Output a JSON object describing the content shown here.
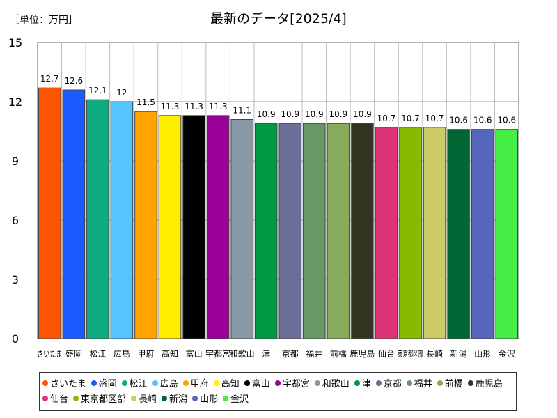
{
  "chart_data": {
    "type": "bar",
    "title": "最新のデータ[2025/4]",
    "unit_label": "［単位：万円］",
    "ylim": [
      0,
      15
    ],
    "yticks": [
      0,
      3,
      6,
      9,
      12,
      15
    ],
    "grid": true,
    "legend_position": "bottom",
    "categories": [
      "さいたま",
      "盛岡",
      "松江",
      "広島",
      "甲府",
      "高知",
      "富山",
      "宇都宮",
      "和歌山",
      "津",
      "京都",
      "福井",
      "前橋",
      "鹿児島",
      "仙台",
      "東京都区部",
      "長崎",
      "新潟",
      "山形",
      "金沢"
    ],
    "values": [
      12.7,
      12.6,
      12.1,
      12,
      11.5,
      11.3,
      11.3,
      11.3,
      11.1,
      10.9,
      10.9,
      10.9,
      10.9,
      10.9,
      10.7,
      10.7,
      10.7,
      10.6,
      10.6,
      10.6
    ],
    "value_labels": [
      "12.7",
      "12.6",
      "12.1",
      "12",
      "11.5",
      "11.3",
      "11.3",
      "11.3",
      "11.1",
      "10.9",
      "10.9",
      "10.9",
      "10.9",
      "10.9",
      "10.7",
      "10.7",
      "10.7",
      "10.6",
      "10.6",
      "10.6"
    ],
    "colors": [
      "#ff5500",
      "#1a5cff",
      "#0faa80",
      "#55c4ff",
      "#ffa500",
      "#ffee00",
      "#000000",
      "#990099",
      "#8899a6",
      "#009944",
      "#6b6e99",
      "#669966",
      "#8aaa5c",
      "#333322",
      "#dd3377",
      "#88bb00",
      "#cccc66",
      "#006633",
      "#5566bb",
      "#44ee44"
    ]
  }
}
